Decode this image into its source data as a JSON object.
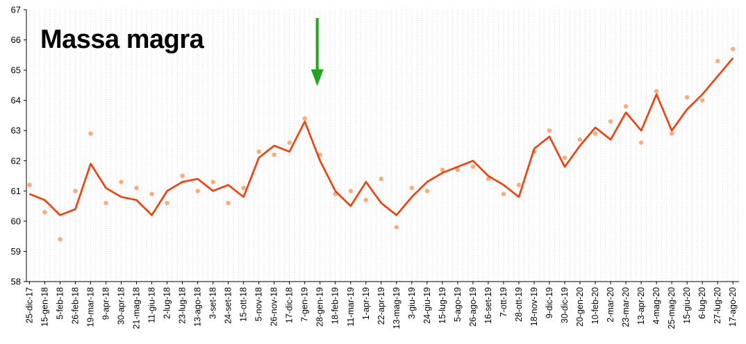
{
  "chart_data": {
    "type": "line",
    "title": "Massa magra",
    "xlabel": "",
    "ylabel": "",
    "ylim": [
      58,
      67
    ],
    "yticks": [
      58,
      59,
      60,
      61,
      62,
      63,
      64,
      65,
      66,
      67
    ],
    "grid": "vertical dotted, weekly",
    "categories": [
      "25-dic-17",
      "15-gen-18",
      "5-feb-18",
      "26-feb-18",
      "19-mar-18",
      "9-apr-18",
      "30-apr-18",
      "21-mag-18",
      "11-giu-18",
      "2-lug-18",
      "23-lug-18",
      "13-ago-18",
      "3-set-18",
      "24-set-18",
      "15-ott-18",
      "5-nov-18",
      "26-nov-18",
      "17-dic-18",
      "7-gen-19",
      "28-gen-19",
      "18-feb-19",
      "11-mar-19",
      "1-apr-19",
      "22-apr-19",
      "13-mag-19",
      "3-giu-19",
      "24-giu-19",
      "15-lug-19",
      "5-ago-19",
      "26-ago-19",
      "16-set-19",
      "7-ott-19",
      "28-ott-19",
      "18-nov-19",
      "9-dic-19",
      "30-dic-19",
      "20-gen-20",
      "10-feb-20",
      "2-mar-20",
      "23-mar-20",
      "13-apr-20",
      "4-mag-20",
      "25-mag-20",
      "15-giu-20",
      "6-lug-20",
      "27-lug-20",
      "17-ago-20"
    ],
    "series": [
      {
        "values": [
          60.9,
          60.7,
          60.2,
          60.4,
          61.9,
          61.1,
          60.8,
          60.7,
          60.2,
          61.0,
          61.3,
          61.4,
          61.0,
          61.2,
          60.8,
          62.1,
          62.5,
          62.3,
          63.3,
          62.0,
          61.0,
          60.5,
          61.3,
          60.6,
          60.2,
          60.8,
          61.3,
          61.6,
          61.8,
          62.0,
          61.5,
          61.2,
          60.8,
          62.4,
          62.8,
          61.8,
          62.5,
          63.1,
          62.7,
          63.6,
          63.0,
          64.2,
          63.0,
          63.7,
          64.2,
          64.8,
          65.4
        ],
        "color": "#ff3a00"
      },
      {
        "values": [
          61.2,
          60.3,
          59.4,
          61.0,
          62.9,
          60.6,
          61.3,
          61.1,
          60.9,
          60.6,
          61.5,
          61.0,
          61.3,
          60.6,
          61.1,
          62.3,
          62.2,
          62.6,
          63.4,
          62.2,
          60.9,
          61.0,
          60.7,
          61.4,
          59.8,
          61.1,
          61.0,
          61.7,
          61.7,
          61.8,
          61.4,
          60.9,
          61.2,
          62.3,
          63.0,
          62.1,
          62.7,
          62.9,
          63.3,
          63.8,
          62.6,
          64.3,
          62.9,
          64.1,
          64.0,
          65.3,
          65.7
        ],
        "color": "#ffaa77"
      }
    ],
    "annotations": [
      {
        "type": "arrow",
        "color": "#22a51f",
        "at_category": "28-gen-19",
        "direction": "down"
      }
    ]
  }
}
